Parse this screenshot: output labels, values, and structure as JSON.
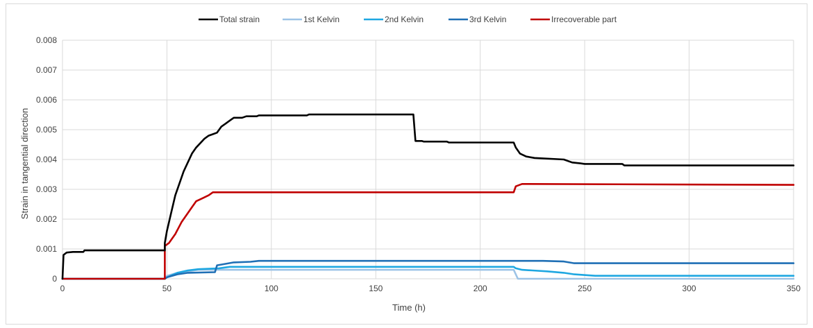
{
  "chart_data": {
    "type": "line",
    "xlabel": "Time (h)",
    "ylabel": "Strain in tangential direction",
    "xlim": [
      0,
      350
    ],
    "ylim": [
      0,
      0.008
    ],
    "x_ticks": [
      0,
      50,
      100,
      150,
      200,
      250,
      300,
      350
    ],
    "y_ticks": [
      0,
      0.001,
      0.002,
      0.003,
      0.004,
      0.005,
      0.006,
      0.007,
      0.008
    ],
    "y_tick_labels": [
      "0",
      "0.001",
      "0.002",
      "0.003",
      "0.004",
      "0.005",
      "0.006",
      "0.007",
      "0.008"
    ],
    "grid": "vertical-and-horizontal",
    "legend_position": "top",
    "series": [
      {
        "name": "Total strain",
        "color": "#000000",
        "points": [
          [
            0,
            0
          ],
          [
            0.5,
            0.0008
          ],
          [
            2,
            0.00088
          ],
          [
            5,
            0.0009
          ],
          [
            10,
            0.0009
          ],
          [
            10.5,
            0.00095
          ],
          [
            49,
            0.00095
          ],
          [
            49,
            0.0012
          ],
          [
            50,
            0.0016
          ],
          [
            52,
            0.0022
          ],
          [
            54,
            0.0028
          ],
          [
            56,
            0.0032
          ],
          [
            58,
            0.0036
          ],
          [
            60,
            0.0039
          ],
          [
            62,
            0.0042
          ],
          [
            64,
            0.0044
          ],
          [
            66,
            0.00455
          ],
          [
            68,
            0.0047
          ],
          [
            70,
            0.0048
          ],
          [
            72,
            0.00485
          ],
          [
            74,
            0.0049
          ],
          [
            76,
            0.0051
          ],
          [
            78,
            0.0052
          ],
          [
            80,
            0.0053
          ],
          [
            82,
            0.0054
          ],
          [
            86,
            0.0054
          ],
          [
            88,
            0.00545
          ],
          [
            93,
            0.00545
          ],
          [
            94,
            0.00548
          ],
          [
            117,
            0.00548
          ],
          [
            118,
            0.00551
          ],
          [
            168,
            0.00551
          ],
          [
            169,
            0.00462
          ],
          [
            172,
            0.00462
          ],
          [
            173,
            0.0046
          ],
          [
            184,
            0.0046
          ],
          [
            185,
            0.00457
          ],
          [
            216,
            0.00457
          ],
          [
            217,
            0.0044
          ],
          [
            219,
            0.0042
          ],
          [
            222,
            0.0041
          ],
          [
            226,
            0.00405
          ],
          [
            240,
            0.004
          ],
          [
            244,
            0.0039
          ],
          [
            248,
            0.00387
          ],
          [
            250,
            0.00385
          ],
          [
            268,
            0.00385
          ],
          [
            269,
            0.0038
          ],
          [
            350,
            0.0038
          ]
        ]
      },
      {
        "name": "1st Kelvin",
        "color": "#9dc3e6",
        "points": [
          [
            0,
            0
          ],
          [
            49,
            0
          ],
          [
            50,
            0.0001
          ],
          [
            55,
            0.0002
          ],
          [
            60,
            0.00025
          ],
          [
            65,
            0.0003
          ],
          [
            75,
            0.0003
          ],
          [
            216,
            0.0003
          ],
          [
            217,
            0.00015
          ],
          [
            218,
            0
          ],
          [
            350,
            0
          ]
        ]
      },
      {
        "name": "2nd Kelvin",
        "color": "#1ea7e1",
        "points": [
          [
            0,
            0
          ],
          [
            49,
            0
          ],
          [
            50,
            5e-05
          ],
          [
            55,
            0.0002
          ],
          [
            60,
            0.00028
          ],
          [
            65,
            0.00032
          ],
          [
            75,
            0.00035
          ],
          [
            80,
            0.0004
          ],
          [
            216,
            0.0004
          ],
          [
            217,
            0.00035
          ],
          [
            220,
            0.0003
          ],
          [
            225,
            0.00028
          ],
          [
            232,
            0.00025
          ],
          [
            240,
            0.0002
          ],
          [
            245,
            0.00015
          ],
          [
            255,
            0.0001
          ],
          [
            350,
            0.0001
          ]
        ]
      },
      {
        "name": "3rd Kelvin",
        "color": "#1f6fb5",
        "points": [
          [
            0,
            0
          ],
          [
            49,
            0
          ],
          [
            50,
            5e-05
          ],
          [
            55,
            0.00015
          ],
          [
            60,
            0.0002
          ],
          [
            73,
            0.00022
          ],
          [
            74,
            0.00045
          ],
          [
            78,
            0.0005
          ],
          [
            82,
            0.00055
          ],
          [
            90,
            0.00057
          ],
          [
            94,
            0.0006
          ],
          [
            230,
            0.0006
          ],
          [
            240,
            0.00058
          ],
          [
            245,
            0.00052
          ],
          [
            350,
            0.00052
          ]
        ]
      },
      {
        "name": "Irrecoverable part",
        "color": "#c00000",
        "points": [
          [
            0,
            0
          ],
          [
            49,
            0
          ],
          [
            49,
            0.0011
          ],
          [
            51,
            0.0012
          ],
          [
            54,
            0.0015
          ],
          [
            57,
            0.0019
          ],
          [
            60,
            0.0022
          ],
          [
            62,
            0.0024
          ],
          [
            64,
            0.0026
          ],
          [
            67,
            0.0027
          ],
          [
            70,
            0.0028
          ],
          [
            72,
            0.0029
          ],
          [
            216,
            0.0029
          ],
          [
            217,
            0.0031
          ],
          [
            220,
            0.00318
          ],
          [
            350,
            0.00315
          ]
        ]
      }
    ]
  }
}
